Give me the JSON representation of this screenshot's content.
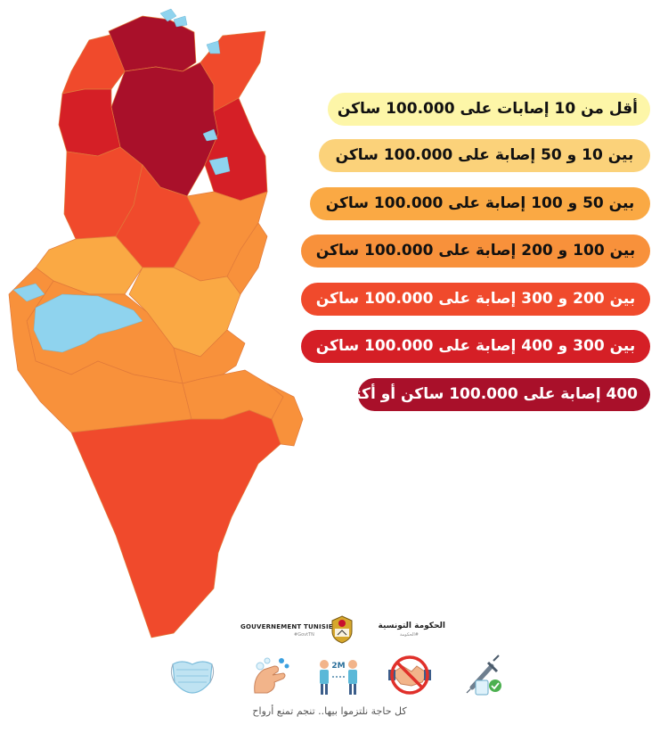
{
  "legend": [
    {
      "label": "أقل من 10 إصابات على 100.000 ساكن",
      "color": "#fdf6a8"
    },
    {
      "label": "بين 10 و 50 إصابة على 100.000 ساكن",
      "color": "#fbd27a"
    },
    {
      "label": "بين 50 و 100 إصابة على 100.000 ساكن",
      "color": "#faa944"
    },
    {
      "label": "بين 100 و 200 إصابة على 100.000 ساكن",
      "color": "#f8913b"
    },
    {
      "label": "بين 200 و 300 إصابة على 100.000 ساكن",
      "color": "#f04a2c"
    },
    {
      "label": "بين 300 و 400 إصابة على 100.000 ساكن",
      "color": "#d51f26"
    },
    {
      "label": "400 إصابة على 100.000 ساكن أو أكثر",
      "color": "#a9102a"
    }
  ],
  "map": {
    "water_color": "#8fd3ee",
    "regions": [
      {
        "name": "north-west-1",
        "class": 4
      },
      {
        "name": "bizerte",
        "class": 6
      },
      {
        "name": "tunis-core",
        "class": 6
      },
      {
        "name": "cap-bon",
        "class": 4
      },
      {
        "name": "sahel-north",
        "class": 5
      },
      {
        "name": "jendouba",
        "class": 5
      },
      {
        "name": "kef",
        "class": 4
      },
      {
        "name": "siliana",
        "class": 4
      },
      {
        "name": "kasserine",
        "class": 2
      },
      {
        "name": "kairouan",
        "class": 3
      },
      {
        "name": "sahel-south",
        "class": 3
      },
      {
        "name": "sidi-bouzid",
        "class": 2
      },
      {
        "name": "gafsa",
        "class": 3
      },
      {
        "name": "sfax",
        "class": 3
      },
      {
        "name": "tozeur-kebili",
        "class": 3
      },
      {
        "name": "gabes",
        "class": 3
      },
      {
        "name": "medenine",
        "class": 3
      },
      {
        "name": "tataouine",
        "class": 4
      }
    ]
  },
  "footer": {
    "brand_fr": "GOUVERNEMENT TUNISIEN",
    "brand_fr_tag": "#GovtTN",
    "brand_ar": "الحكومة التونسية",
    "brand_ar_tag": "#الحكومة",
    "slogan": "كل حاجة نلتزموا بيها.. تنجم تمنع أرواح",
    "icons": [
      "vaccine-icon",
      "handshake-prohibited-icon",
      "distance-2m-icon",
      "handwash-icon",
      "mask-icon"
    ],
    "distance_label": "2M"
  }
}
